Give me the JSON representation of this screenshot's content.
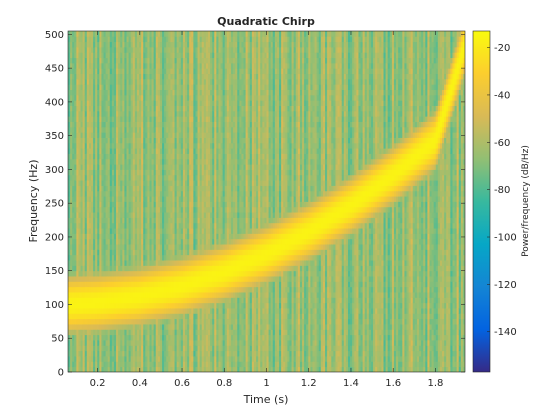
{
  "chart_data": {
    "type": "heatmap",
    "title": "Quadratic Chirp",
    "xlabel": "Time (s)",
    "ylabel": "Frequency (Hz)",
    "xlim": [
      0.06,
      1.94
    ],
    "ylim": [
      0,
      505
    ],
    "x_ticks": [
      0.2,
      0.4,
      0.6,
      0.8,
      1,
      1.2,
      1.4,
      1.6,
      1.8
    ],
    "x_tick_labels": [
      "0.2",
      "0.4",
      "0.6",
      "0.8",
      "1",
      "1.2",
      "1.4",
      "1.6",
      "1.8"
    ],
    "y_ticks": [
      0,
      50,
      100,
      150,
      200,
      250,
      300,
      350,
      400,
      450,
      500
    ],
    "y_tick_labels": [
      "0",
      "50",
      "100",
      "150",
      "200",
      "250",
      "300",
      "350",
      "400",
      "450",
      "500"
    ],
    "colormap": "parula",
    "colorbar": {
      "label": "Power/frequency (dB/Hz)",
      "clim": [
        -157,
        -13
      ],
      "ticks": [
        -20,
        -40,
        -60,
        -80,
        -100,
        -120,
        -140
      ],
      "tick_labels": [
        "-20",
        "-40",
        "-60",
        "-80",
        "-100",
        "-120",
        "-140"
      ]
    },
    "ridge": {
      "description_points": [
        {
          "t": 0.06,
          "f": 100
        },
        {
          "t": 0.2,
          "f": 103
        },
        {
          "t": 0.4,
          "f": 112
        },
        {
          "t": 0.6,
          "f": 127
        },
        {
          "t": 0.8,
          "f": 148
        },
        {
          "t": 1.0,
          "f": 175
        },
        {
          "t": 1.2,
          "f": 208
        },
        {
          "t": 1.4,
          "f": 247
        },
        {
          "t": 1.6,
          "f": 292
        },
        {
          "t": 1.8,
          "f": 343
        },
        {
          "t": 1.94,
          "f": 485
        }
      ],
      "peak_db": -16
    },
    "background_db": -65,
    "grid": false,
    "legend": "none"
  }
}
